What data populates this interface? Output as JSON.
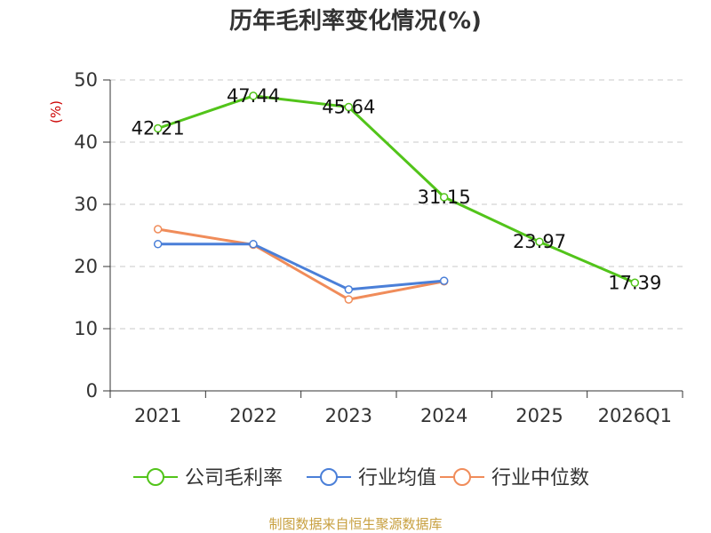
{
  "chart_data": {
    "type": "line",
    "title": "历年毛利率变化情况(%)",
    "ylabel": "(%)",
    "xlabel": "",
    "categories": [
      "2021",
      "2022",
      "2023",
      "2024",
      "2025",
      "2026Q1"
    ],
    "ylim": [
      0,
      50
    ],
    "yticks": [
      0,
      10,
      20,
      30,
      40,
      50
    ],
    "grid": true,
    "legend_position": "bottom",
    "series": [
      {
        "name": "公司毛利率",
        "color": "#52c41a",
        "values": [
          42.21,
          47.44,
          45.64,
          31.15,
          23.97,
          17.39
        ],
        "labels": [
          "42.21",
          "47.44",
          "45.64",
          "31.15",
          "23.97",
          "17.39"
        ]
      },
      {
        "name": "行业均值",
        "color": "#4a7fd8",
        "values": [
          23.6,
          23.6,
          16.3,
          17.7,
          null,
          null
        ]
      },
      {
        "name": "行业中位数",
        "color": "#f08c5a",
        "values": [
          26.0,
          23.5,
          14.7,
          17.6,
          null,
          null
        ]
      }
    ]
  },
  "footer": {
    "source": "制图数据来自恒生聚源数据库"
  }
}
